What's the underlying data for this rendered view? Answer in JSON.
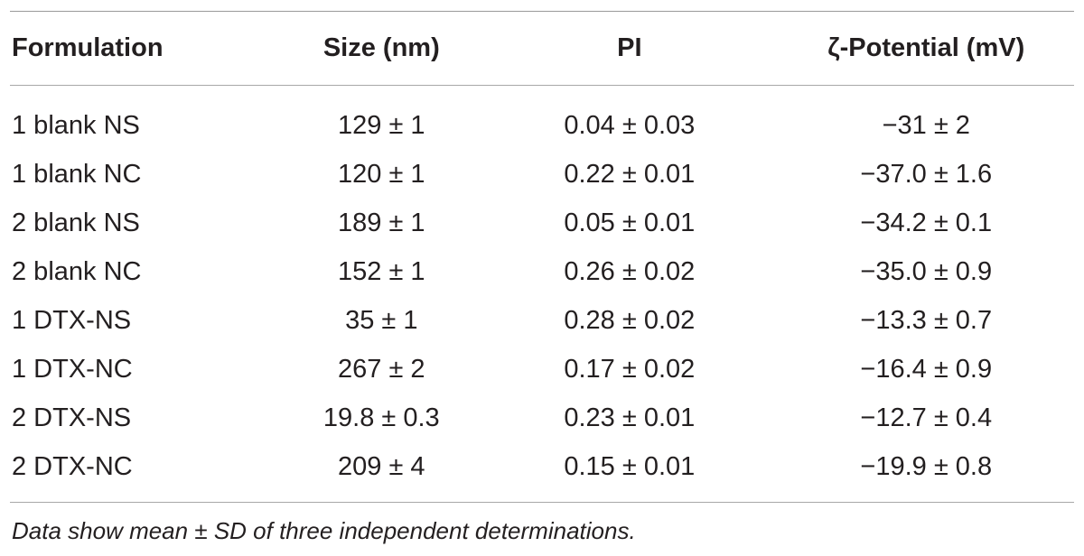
{
  "table": {
    "headers": [
      "Formulation",
      "Size (nm)",
      "PI",
      "ζ-Potential (mV)"
    ],
    "rows": [
      [
        "1 blank NS",
        "129 ± 1",
        "0.04 ± 0.03",
        "−31 ± 2"
      ],
      [
        "1 blank NC",
        "120 ± 1",
        "0.22 ± 0.01",
        "−37.0 ± 1.6"
      ],
      [
        "2 blank NS",
        "189 ± 1",
        "0.05 ± 0.01",
        "−34.2 ± 0.1"
      ],
      [
        "2 blank NC",
        "152 ± 1",
        "0.26 ± 0.02",
        "−35.0 ± 0.9"
      ],
      [
        "1 DTX-NS",
        "35 ± 1",
        "0.28 ± 0.02",
        "−13.3 ± 0.7"
      ],
      [
        "1 DTX-NC",
        "267 ± 2",
        "0.17 ± 0.02",
        "−16.4 ± 0.9"
      ],
      [
        "2 DTX-NS",
        "19.8 ± 0.3",
        "0.23 ± 0.01",
        "−12.7 ± 0.4"
      ],
      [
        "2 DTX-NC",
        "209 ± 4",
        "0.15 ± 0.01",
        "−19.9 ± 0.8"
      ]
    ],
    "footnote": "Data show mean ± SD of three independent determinations."
  }
}
